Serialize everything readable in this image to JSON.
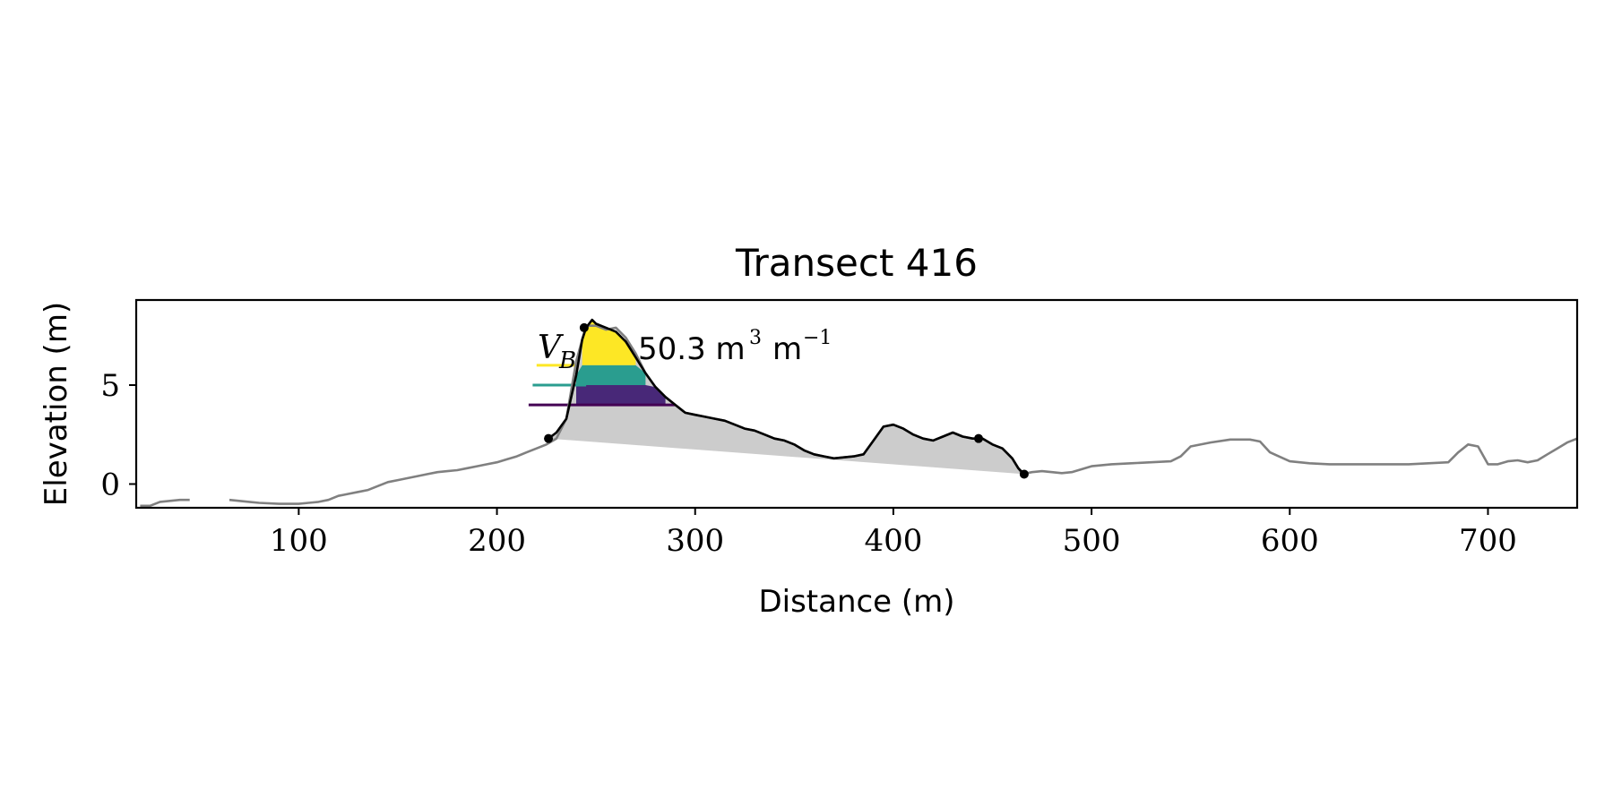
{
  "chart_data": {
    "type": "line",
    "title": "Transect 416",
    "xlabel": "Distance (m)",
    "ylabel": "Elevation (m)",
    "xlim": [
      18,
      745
    ],
    "ylim": [
      -1.2,
      9.3
    ],
    "xticks": [
      100,
      200,
      300,
      400,
      500,
      600,
      700
    ],
    "yticks": [
      0,
      5
    ],
    "grid": false,
    "profile": {
      "color": "#808080",
      "x": [
        20,
        25,
        30,
        40,
        45,
        60,
        65,
        70,
        75,
        80,
        90,
        100,
        105,
        110,
        115,
        120,
        125,
        130,
        135,
        140,
        145,
        150,
        155,
        160,
        165,
        170,
        175,
        180,
        185,
        190,
        195,
        200,
        205,
        210,
        215,
        220,
        225,
        230,
        235,
        240,
        245,
        250,
        255,
        260,
        265,
        270,
        275,
        280,
        285,
        290,
        295,
        300,
        305,
        310,
        315,
        320,
        325,
        330,
        335,
        340,
        345,
        350,
        355,
        360,
        365,
        370,
        375,
        380,
        385,
        390,
        395,
        400,
        405,
        410,
        415,
        420,
        425,
        430,
        435,
        440,
        445,
        450,
        455,
        460,
        465,
        470,
        475,
        480,
        485,
        490,
        500,
        510,
        520,
        530,
        540,
        545,
        550,
        560,
        570,
        580,
        585,
        590,
        600,
        610,
        620,
        630,
        640,
        650,
        660,
        670,
        680,
        685,
        690,
        695,
        700,
        705,
        710,
        715,
        720,
        725,
        730,
        735,
        740,
        745
      ],
      "y": [
        -1.1,
        -1.1,
        -0.9,
        -0.8,
        -0.8,
        null,
        -0.8,
        -0.85,
        -0.9,
        -0.95,
        -1.0,
        -1.0,
        -0.95,
        -0.9,
        -0.8,
        -0.6,
        -0.5,
        -0.4,
        -0.3,
        -0.1,
        0.1,
        0.2,
        0.3,
        0.4,
        0.5,
        0.6,
        0.65,
        0.7,
        0.8,
        0.9,
        1.0,
        1.1,
        1.25,
        1.4,
        1.6,
        1.8,
        2.0,
        2.3,
        3.3,
        6.2,
        8.0,
        8.0,
        7.8,
        7.9,
        7.4,
        6.6,
        5.6,
        4.9,
        4.4,
        4.0,
        3.6,
        3.5,
        3.4,
        3.3,
        3.2,
        3.0,
        2.8,
        2.7,
        2.5,
        2.3,
        2.2,
        2.0,
        1.7,
        1.5,
        1.4,
        1.3,
        1.35,
        1.4,
        1.5,
        2.2,
        2.9,
        3.0,
        2.8,
        2.5,
        2.3,
        2.2,
        2.4,
        2.6,
        2.4,
        2.3,
        2.3,
        2.0,
        1.8,
        1.3,
        0.5,
        0.6,
        0.65,
        0.6,
        0.55,
        0.6,
        0.9,
        1.0,
        1.05,
        1.1,
        1.15,
        1.4,
        1.9,
        2.1,
        2.25,
        2.25,
        2.15,
        1.6,
        1.15,
        1.05,
        1.0,
        1.0,
        1.0,
        1.0,
        1.0,
        1.05,
        1.1,
        1.6,
        2.0,
        1.9,
        1.0,
        1.0,
        1.15,
        1.2,
        1.1,
        1.2,
        1.5,
        1.8,
        2.1,
        2.3
      ]
    },
    "dune": {
      "color": "#000000",
      "fill": "#cccccc",
      "x": [
        226,
        230,
        235,
        240,
        243,
        245,
        248,
        250,
        255,
        260,
        265,
        270,
        275,
        280,
        285,
        290,
        295,
        300,
        305,
        310,
        315,
        320,
        325,
        330,
        335,
        340,
        345,
        350,
        355,
        360,
        365,
        370,
        375,
        380,
        385,
        390,
        395,
        400,
        405,
        410,
        415,
        420,
        425,
        430,
        435,
        440,
        445,
        450,
        455,
        460,
        463,
        466
      ],
      "y": [
        2.3,
        2.6,
        3.3,
        5.5,
        7.3,
        7.9,
        8.3,
        8.1,
        7.9,
        7.7,
        7.2,
        6.4,
        5.6,
        4.9,
        4.4,
        4.0,
        3.6,
        3.5,
        3.4,
        3.3,
        3.2,
        3.0,
        2.8,
        2.7,
        2.5,
        2.3,
        2.2,
        2.0,
        1.7,
        1.5,
        1.4,
        1.3,
        1.35,
        1.4,
        1.5,
        2.2,
        2.9,
        3.0,
        2.8,
        2.5,
        2.3,
        2.2,
        2.4,
        2.6,
        2.4,
        2.3,
        2.3,
        2.0,
        1.8,
        1.3,
        0.8,
        0.5
      ],
      "toe_points": [
        [
          226,
          2.3
        ],
        [
          466,
          0.5
        ]
      ],
      "crest_point": [
        244,
        7.9
      ],
      "other_point": [
        443,
        2.3
      ]
    },
    "volume_bands": [
      {
        "color": "#fde725",
        "level": 6.0,
        "line_x": [
          220,
          240
        ]
      },
      {
        "color": "#2a9d8f",
        "level": 5.0,
        "line_x": [
          218,
          245
        ]
      },
      {
        "color": "#440154",
        "level": 4.0,
        "line_x": [
          216,
          290
        ]
      }
    ],
    "band_fills": [
      "#fde725",
      "#2a9d8f",
      "#482878"
    ],
    "annotation": {
      "symbol": "V",
      "subscript": "B",
      "value": "50.3 m",
      "unit_exp": "3",
      "unit_rest": "m",
      "unit_exp2": "−1"
    }
  }
}
